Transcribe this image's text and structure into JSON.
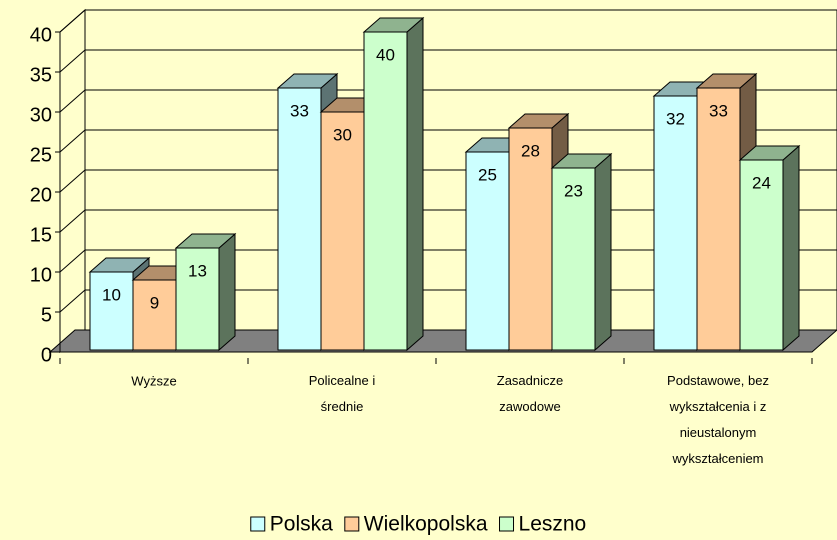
{
  "chart_data": {
    "type": "bar3d",
    "categories": [
      "Wyższe",
      "Policealne i średnie",
      "Zasadnicze zawodowe",
      "Podstawowe, bez wykształcenia i z nieustalonym wykształceniem"
    ],
    "series": [
      {
        "name": "Polska",
        "color": "#ccffff",
        "values": [
          10,
          33,
          25,
          32
        ]
      },
      {
        "name": "Wielkopolska",
        "color": "#ffcc99",
        "values": [
          9,
          30,
          28,
          33
        ]
      },
      {
        "name": "Leszno",
        "color": "#ccffcc",
        "values": [
          13,
          40,
          23,
          24
        ]
      }
    ],
    "ylim": [
      0,
      40
    ],
    "yticks": [
      0,
      5,
      10,
      15,
      20,
      25,
      30,
      35,
      40
    ],
    "grid": true,
    "legend": "bottom"
  }
}
